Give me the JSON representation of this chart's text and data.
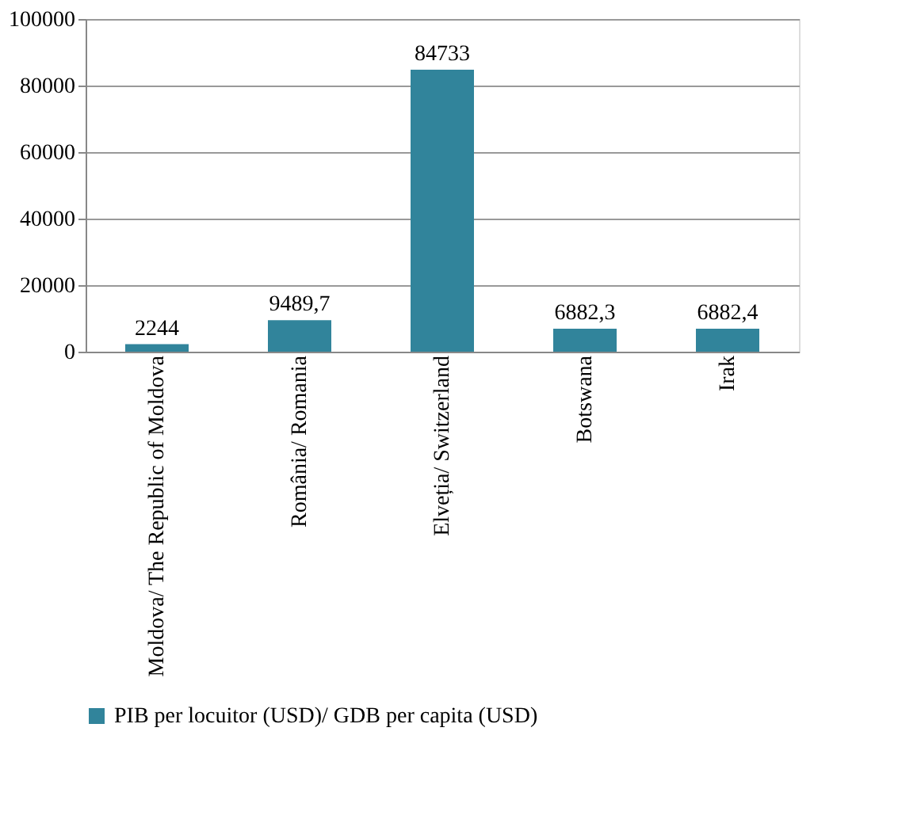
{
  "chart_data": {
    "type": "bar",
    "categories": [
      "Moldova/ The Republic of Moldova",
      "România/ Romania",
      "Elveția/ Switzerland",
      "Botswana",
      "Irak"
    ],
    "series": [
      {
        "name": "PIB per locuitor (USD)/ GDB per capita (USD)",
        "color": "#31849b",
        "values": [
          2244,
          9489.7,
          84733,
          6882.3,
          6882.4
        ]
      }
    ],
    "value_labels": [
      "2244",
      "9489,7",
      "84733",
      "6882,3",
      "6882,4"
    ],
    "ylim": [
      0,
      100000
    ],
    "yticks": [
      0,
      20000,
      40000,
      60000,
      80000,
      100000
    ],
    "grid": "y",
    "legend": "bottom"
  }
}
